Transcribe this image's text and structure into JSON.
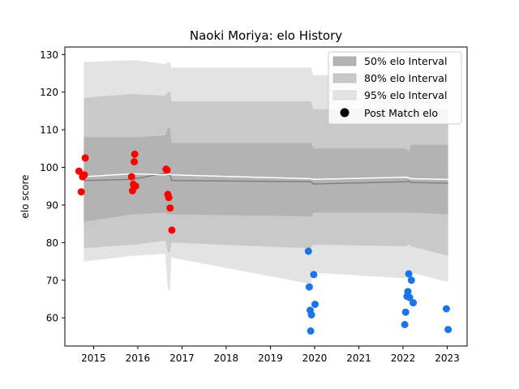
{
  "chart_data": {
    "type": "scatter",
    "title": "Naoki Moriya: elo History",
    "xlabel": "",
    "ylabel": "elo score",
    "xlim": [
      2014.35,
      2023.45
    ],
    "ylim": [
      52.5,
      132
    ],
    "xticks": [
      2015,
      2016,
      2017,
      2018,
      2019,
      2020,
      2021,
      2022,
      2023
    ],
    "yticks": [
      60,
      70,
      80,
      90,
      100,
      110,
      120,
      130
    ],
    "legend": {
      "placement": "top-right",
      "entries": [
        {
          "label": "50% elo Interval",
          "kind": "band",
          "color": "#b3b3b3"
        },
        {
          "label": "80% elo Interval",
          "kind": "band",
          "color": "#c9c9c9"
        },
        {
          "label": "95% elo Interval",
          "kind": "band",
          "color": "#e3e3e3"
        },
        {
          "label": "Post Match elo",
          "kind": "point",
          "color": "#000000"
        }
      ]
    },
    "colors": {
      "band_50": "#b3b3b3",
      "band_80": "#c9c9c9",
      "band_95": "#e3e3e3",
      "mean_line": "#808080",
      "median_line": "#ffffff",
      "win": "#ff0000",
      "loss": "#1a75e8"
    },
    "bands": {
      "x": [
        2014.78,
        2015.88,
        2015.93,
        2016.62,
        2016.68,
        2016.73,
        2016.76,
        2019.92,
        2019.97,
        2022.08,
        2022.12,
        2022.19,
        2023.02
      ],
      "p95": [
        [
          75.0,
          128.0
        ],
        [
          76.5,
          128.5
        ],
        [
          76.5,
          128.5
        ],
        [
          77.0,
          127.5
        ],
        [
          67.5,
          128.0
        ],
        [
          67.5,
          128.0
        ],
        [
          76.0,
          126.5
        ],
        [
          69.0,
          126.5
        ],
        [
          72.0,
          124.5
        ],
        [
          70.5,
          124.5
        ],
        [
          72.5,
          122.5
        ],
        [
          72.0,
          123.5
        ],
        [
          69.5,
          123.5
        ]
      ],
      "p80": [
        [
          78.5,
          118.5
        ],
        [
          79.5,
          119.5
        ],
        [
          79.5,
          119.5
        ],
        [
          80.5,
          119.0
        ],
        [
          77.5,
          120.0
        ],
        [
          77.5,
          120.0
        ],
        [
          80.0,
          117.5
        ],
        [
          78.5,
          117.5
        ],
        [
          79.5,
          115.5
        ],
        [
          79.0,
          115.5
        ],
        [
          79.5,
          114.5
        ],
        [
          79.0,
          115.5
        ],
        [
          76.5,
          115.5
        ]
      ],
      "p50": [
        [
          85.5,
          108.0
        ],
        [
          87.5,
          108.0
        ],
        [
          87.5,
          108.0
        ],
        [
          88.0,
          108.5
        ],
        [
          87.5,
          110.5
        ],
        [
          87.5,
          110.5
        ],
        [
          87.5,
          106.5
        ],
        [
          87.0,
          106.5
        ],
        [
          88.0,
          105.0
        ],
        [
          88.0,
          105.0
        ],
        [
          88.0,
          104.0
        ],
        [
          88.0,
          106.0
        ],
        [
          87.5,
          106.0
        ]
      ]
    },
    "mean": {
      "x": [
        2014.78,
        2015.88,
        2016.62,
        2016.72,
        2016.76,
        2019.92,
        2019.97,
        2022.08,
        2022.12,
        2022.19,
        2023.02
      ],
      "y": [
        96.5,
        96.8,
        98.5,
        98.8,
        96.5,
        96.2,
        95.6,
        96.2,
        96.4,
        96.0,
        95.8
      ]
    },
    "median": {
      "x": [
        2014.78,
        2015.88,
        2016.62,
        2016.72,
        2016.76,
        2019.92,
        2019.97,
        2022.08,
        2022.12,
        2022.19,
        2023.02
      ],
      "y": [
        97.5,
        98.3,
        98.0,
        98.3,
        98.0,
        97.0,
        96.8,
        97.4,
        97.2,
        97.0,
        96.8
      ]
    },
    "series": [
      {
        "result": "win",
        "x": [
          2014.67,
          2014.72,
          2014.75,
          2014.79,
          2014.81,
          2015.86,
          2015.88,
          2015.9,
          2015.92,
          2015.93,
          2015.95,
          2016.64,
          2016.66,
          2016.68,
          2016.7,
          2016.73,
          2016.77
        ],
        "y": [
          99.0,
          93.5,
          97.5,
          98.0,
          102.5,
          97.5,
          93.8,
          95.5,
          101.5,
          103.5,
          95.0,
          99.5,
          99.3,
          92.8,
          92.0,
          89.2,
          83.3
        ]
      },
      {
        "result": "loss",
        "x": [
          2019.86,
          2019.88,
          2019.9,
          2019.91,
          2019.93,
          2019.98,
          2020.01,
          2022.04,
          2022.06,
          2022.09,
          2022.11,
          2022.13,
          2022.15,
          2022.19,
          2022.23,
          2022.98,
          2023.02
        ],
        "y": [
          77.7,
          68.2,
          62.0,
          56.5,
          60.8,
          71.5,
          63.6,
          58.2,
          61.5,
          65.7,
          67.0,
          71.7,
          65.4,
          70.0,
          64.0,
          62.4,
          56.9
        ]
      }
    ]
  }
}
